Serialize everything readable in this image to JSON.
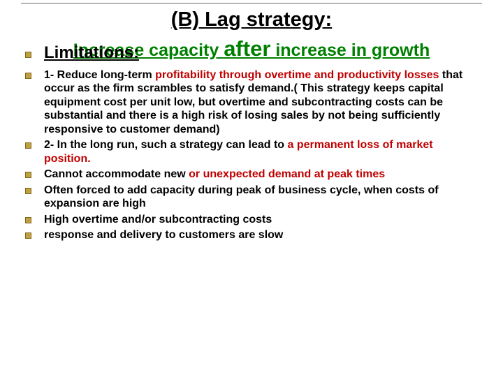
{
  "title": "(B) Lag strategy:",
  "subtitle_pre": "Increase capacity ",
  "subtitle_after": "after",
  "subtitle_post": " increase in growth",
  "limitations_label": "Limitations:",
  "bullets": [
    {
      "pre": "1- Reduce long-term ",
      "red": "profitability through overtime and productivity losses",
      "post": " that occur as the firm scrambles to satisfy demand.( This strategy keeps capital equipment cost per unit low, but overtime and subcontracting costs can be substantial and there is a high risk of losing sales by not being sufficiently responsive to customer demand)"
    },
    {
      "pre": "2- In the long run, such a strategy can lead to ",
      "red": "a permanent loss of market position.",
      "post": ""
    },
    {
      "pre": "Cannot accommodate new ",
      "red": "or unexpected demand at peak times",
      "post": ""
    },
    {
      "pre": "Often forced to add capacity  during peak of business cycle, when costs of expansion are high",
      "red": "",
      "post": ""
    },
    {
      "pre": "High overtime and/or subcontracting costs",
      "red": "",
      "post": ""
    },
    {
      "pre": "response and delivery to customers are slow",
      "red": "",
      "post": ""
    }
  ],
  "colors": {
    "title": "#000000",
    "subtitle": "#008000",
    "red": "#c00000",
    "bullet_fill": "#c0a040",
    "bullet_border": "#806820",
    "background": "#ffffff"
  }
}
